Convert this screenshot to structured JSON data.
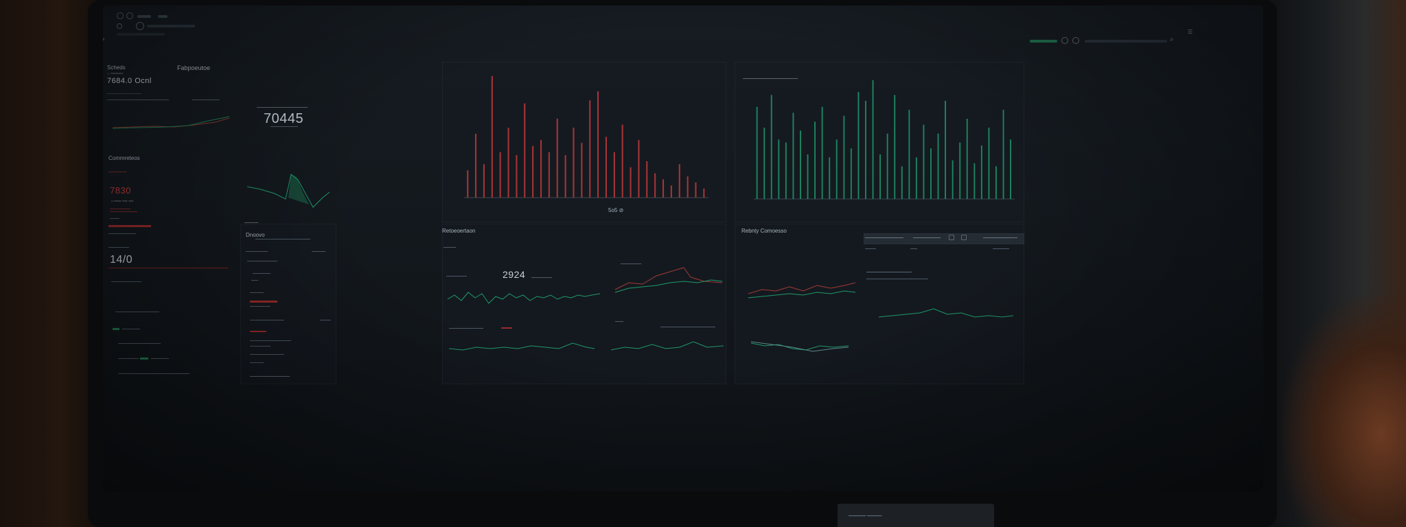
{
  "colors": {
    "accent_red": "#c0393a",
    "accent_green": "#1f9a6a",
    "background": "#12171c"
  },
  "topbar": {
    "search_icon": "search-icon",
    "menu_icon": "menu-icon"
  },
  "left": {
    "title": "Scheds",
    "heading": "Fabpoeutoe",
    "value": "7684.0 Ocnl",
    "section": "Commreteos",
    "metric": "7830",
    "counter": "14/0"
  },
  "kpi": {
    "value": "70445",
    "caption": "Rtsnnu rrsbau"
  },
  "panel_left_mid": {
    "title": "Dnoovo"
  },
  "chart_red": {
    "values": [
      18,
      42,
      22,
      80,
      30,
      46,
      28,
      62,
      34,
      38,
      30,
      52,
      28,
      46,
      36,
      64,
      70,
      40,
      30,
      48,
      20,
      38,
      24,
      16,
      12,
      8,
      22,
      14,
      10,
      6
    ],
    "caption": "5o5 ⊘"
  },
  "chart_green": {
    "values": [
      62,
      48,
      70,
      40,
      38,
      58,
      46,
      30,
      52,
      62,
      28,
      40,
      56,
      34,
      72,
      66,
      80,
      30,
      44,
      70,
      22,
      60,
      28,
      50,
      34,
      44,
      66,
      26,
      38,
      54,
      24,
      36,
      48,
      22,
      60,
      40
    ]
  },
  "bottom": {
    "mid_title": "Retoeoertaon",
    "mid_value": "2924",
    "right_title": "Rebnty Comoesso"
  },
  "chart_data": [
    {
      "type": "bar",
      "series": [
        {
          "values": [
            18,
            42,
            22,
            80,
            30,
            46,
            28,
            62,
            34,
            38,
            30,
            52,
            28,
            46,
            36,
            64,
            70,
            40,
            30,
            48,
            20,
            38,
            24,
            16,
            12,
            8,
            22,
            14,
            10,
            6
          ]
        }
      ]
    },
    {
      "type": "bar",
      "series": [
        {
          "values": [
            62,
            48,
            70,
            40,
            38,
            58,
            46,
            30,
            52,
            62,
            28,
            40,
            56,
            34,
            72,
            66,
            80,
            30,
            44,
            70,
            22,
            60,
            28,
            50,
            34,
            44,
            66,
            26,
            38,
            54,
            24,
            36,
            48,
            22,
            60,
            40
          ]
        }
      ]
    }
  ]
}
